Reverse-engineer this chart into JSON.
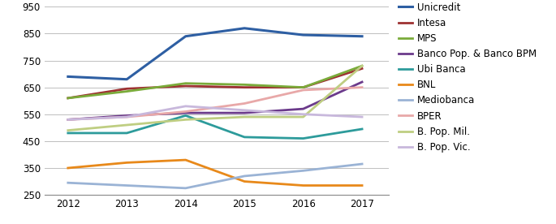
{
  "years": [
    2012,
    2013,
    2014,
    2015,
    2016,
    2017
  ],
  "series": [
    {
      "name": "Unicredit",
      "color": "#2E5FA3",
      "values": [
        690,
        680,
        840,
        870,
        845,
        840
      ],
      "linewidth": 2.2
    },
    {
      "name": "Intesa",
      "color": "#9E3132",
      "values": [
        610,
        645,
        655,
        650,
        650,
        720
      ],
      "linewidth": 2.0
    },
    {
      "name": "MPS",
      "color": "#7AAB3A",
      "values": [
        610,
        635,
        665,
        660,
        650,
        730
      ],
      "linewidth": 2.0
    },
    {
      "name": "Banco Pop. & Banco BPM",
      "color": "#6B3A8B",
      "values": [
        530,
        545,
        555,
        555,
        570,
        670
      ],
      "linewidth": 2.0
    },
    {
      "name": "Ubi Banca",
      "color": "#2D9B9B",
      "values": [
        480,
        480,
        545,
        465,
        460,
        495
      ],
      "linewidth": 2.0
    },
    {
      "name": "BNL",
      "color": "#E8891A",
      "values": [
        350,
        370,
        380,
        300,
        285,
        285
      ],
      "linewidth": 2.0
    },
    {
      "name": "Mediobanca",
      "color": "#9AB3D5",
      "values": [
        295,
        285,
        275,
        320,
        340,
        365
      ],
      "linewidth": 2.0
    },
    {
      "name": "BPER",
      "color": "#E8A8A8",
      "values": [
        530,
        540,
        560,
        590,
        640,
        650
      ],
      "linewidth": 2.0
    },
    {
      "name": "B. Pop. Mil.",
      "color": "#BFCE82",
      "values": [
        490,
        510,
        530,
        540,
        540,
        730
      ],
      "linewidth": 2.0
    },
    {
      "name": "B. Pop. Vic.",
      "color": "#C8B8DC",
      "values": [
        530,
        540,
        580,
        565,
        550,
        540
      ],
      "linewidth": 2.0
    }
  ],
  "ylim": [
    250,
    950
  ],
  "yticks": [
    250,
    350,
    450,
    550,
    650,
    750,
    850,
    950
  ],
  "background_color": "#FFFFFF",
  "grid_color": "#BFBFBF",
  "legend_fontsize": 8.5,
  "tick_fontsize": 8.5,
  "figsize": [
    6.85,
    2.76
  ],
  "dpi": 100
}
